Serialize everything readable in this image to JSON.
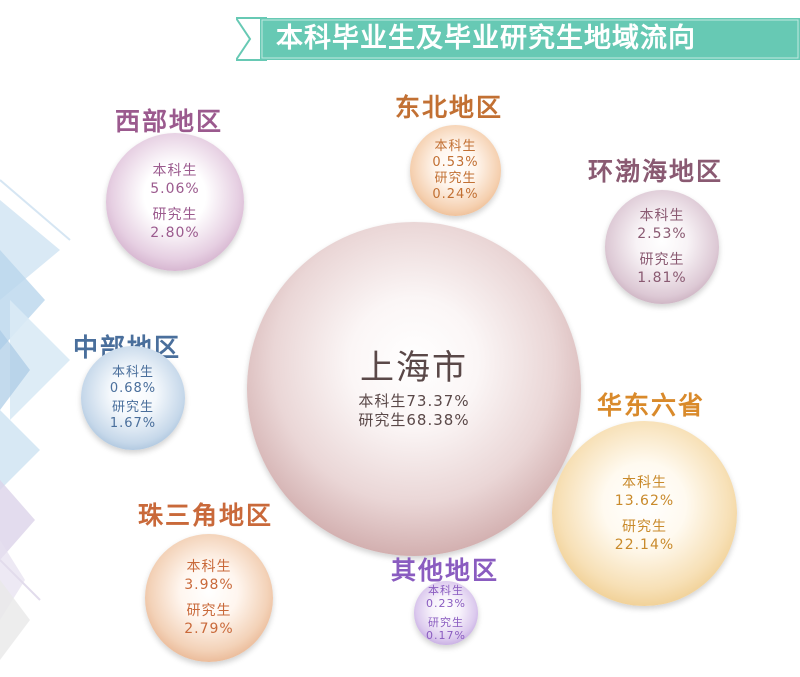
{
  "title": "本科毕业生及毕业研究生地域流向",
  "colors": {
    "banner": "#67c9b4",
    "west": "#9b5a8e",
    "central": "#4a6f9c",
    "northeast": "#c27033",
    "bohai": "#8a5a72",
    "huadong": "#d98a2b",
    "prd": "#c9693a",
    "other": "#8a5cc0",
    "shanghai": "#5a4848"
  },
  "regions": {
    "west": {
      "name": "西部地区",
      "ug_label": "本科生",
      "ug": "5.06%",
      "grad_label": "研究生",
      "grad": "2.80%"
    },
    "central": {
      "name": "中部地区",
      "ug_label": "本科生",
      "ug": "0.68%",
      "grad_label": "研究生",
      "grad": "1.67%"
    },
    "northeast": {
      "name": "东北地区",
      "ug_label": "本科生",
      "ug": "0.53%",
      "grad_label": "研究生",
      "grad": "0.24%"
    },
    "bohai": {
      "name": "环渤海地区",
      "ug_label": "本科生",
      "ug": "2.53%",
      "grad_label": "研究生",
      "grad": "1.81%"
    },
    "shanghai": {
      "name": "上海市",
      "ug_line": "本科生73.37%",
      "grad_line": "研究生68.38%"
    },
    "huadong": {
      "name": "华东六省",
      "ug_label": "本科生",
      "ug": "13.62%",
      "grad_label": "研究生",
      "grad": "22.14%"
    },
    "prd": {
      "name": "珠三角地区",
      "ug_label": "本科生",
      "ug": "3.98%",
      "grad_label": "研究生",
      "grad": "2.79%"
    },
    "other": {
      "name": "其他地区",
      "ug_label": "本科生",
      "ug": "0.23%",
      "grad_label": "研究生",
      "grad": "0.17%"
    }
  }
}
